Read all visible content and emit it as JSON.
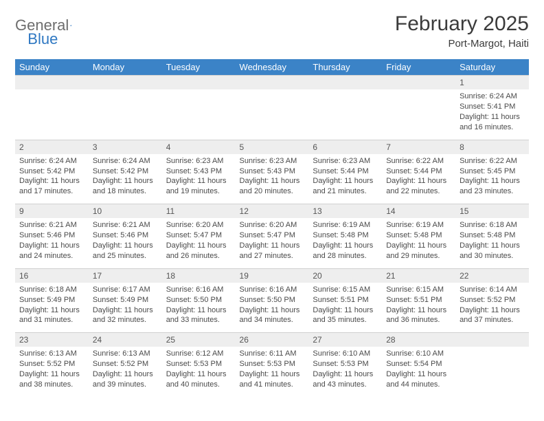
{
  "brand": {
    "part1": "General",
    "part2": "Blue"
  },
  "title": {
    "month": "February 2025",
    "location": "Port-Margot, Haiti"
  },
  "colors": {
    "header_bg": "#3b83c7",
    "header_text": "#ffffff",
    "daynum_bg": "#eeeeee",
    "border": "#d0d0d0",
    "text": "#4a4a4a",
    "brand_gray": "#6d6d6d",
    "brand_blue": "#2f78c2"
  },
  "weekdays": [
    "Sunday",
    "Monday",
    "Tuesday",
    "Wednesday",
    "Thursday",
    "Friday",
    "Saturday"
  ],
  "weeks": [
    [
      null,
      null,
      null,
      null,
      null,
      null,
      {
        "n": "1",
        "sr": "Sunrise: 6:24 AM",
        "ss": "Sunset: 5:41 PM",
        "dl": "Daylight: 11 hours and 16 minutes."
      }
    ],
    [
      {
        "n": "2",
        "sr": "Sunrise: 6:24 AM",
        "ss": "Sunset: 5:42 PM",
        "dl": "Daylight: 11 hours and 17 minutes."
      },
      {
        "n": "3",
        "sr": "Sunrise: 6:24 AM",
        "ss": "Sunset: 5:42 PM",
        "dl": "Daylight: 11 hours and 18 minutes."
      },
      {
        "n": "4",
        "sr": "Sunrise: 6:23 AM",
        "ss": "Sunset: 5:43 PM",
        "dl": "Daylight: 11 hours and 19 minutes."
      },
      {
        "n": "5",
        "sr": "Sunrise: 6:23 AM",
        "ss": "Sunset: 5:43 PM",
        "dl": "Daylight: 11 hours and 20 minutes."
      },
      {
        "n": "6",
        "sr": "Sunrise: 6:23 AM",
        "ss": "Sunset: 5:44 PM",
        "dl": "Daylight: 11 hours and 21 minutes."
      },
      {
        "n": "7",
        "sr": "Sunrise: 6:22 AM",
        "ss": "Sunset: 5:44 PM",
        "dl": "Daylight: 11 hours and 22 minutes."
      },
      {
        "n": "8",
        "sr": "Sunrise: 6:22 AM",
        "ss": "Sunset: 5:45 PM",
        "dl": "Daylight: 11 hours and 23 minutes."
      }
    ],
    [
      {
        "n": "9",
        "sr": "Sunrise: 6:21 AM",
        "ss": "Sunset: 5:46 PM",
        "dl": "Daylight: 11 hours and 24 minutes."
      },
      {
        "n": "10",
        "sr": "Sunrise: 6:21 AM",
        "ss": "Sunset: 5:46 PM",
        "dl": "Daylight: 11 hours and 25 minutes."
      },
      {
        "n": "11",
        "sr": "Sunrise: 6:20 AM",
        "ss": "Sunset: 5:47 PM",
        "dl": "Daylight: 11 hours and 26 minutes."
      },
      {
        "n": "12",
        "sr": "Sunrise: 6:20 AM",
        "ss": "Sunset: 5:47 PM",
        "dl": "Daylight: 11 hours and 27 minutes."
      },
      {
        "n": "13",
        "sr": "Sunrise: 6:19 AM",
        "ss": "Sunset: 5:48 PM",
        "dl": "Daylight: 11 hours and 28 minutes."
      },
      {
        "n": "14",
        "sr": "Sunrise: 6:19 AM",
        "ss": "Sunset: 5:48 PM",
        "dl": "Daylight: 11 hours and 29 minutes."
      },
      {
        "n": "15",
        "sr": "Sunrise: 6:18 AM",
        "ss": "Sunset: 5:48 PM",
        "dl": "Daylight: 11 hours and 30 minutes."
      }
    ],
    [
      {
        "n": "16",
        "sr": "Sunrise: 6:18 AM",
        "ss": "Sunset: 5:49 PM",
        "dl": "Daylight: 11 hours and 31 minutes."
      },
      {
        "n": "17",
        "sr": "Sunrise: 6:17 AM",
        "ss": "Sunset: 5:49 PM",
        "dl": "Daylight: 11 hours and 32 minutes."
      },
      {
        "n": "18",
        "sr": "Sunrise: 6:16 AM",
        "ss": "Sunset: 5:50 PM",
        "dl": "Daylight: 11 hours and 33 minutes."
      },
      {
        "n": "19",
        "sr": "Sunrise: 6:16 AM",
        "ss": "Sunset: 5:50 PM",
        "dl": "Daylight: 11 hours and 34 minutes."
      },
      {
        "n": "20",
        "sr": "Sunrise: 6:15 AM",
        "ss": "Sunset: 5:51 PM",
        "dl": "Daylight: 11 hours and 35 minutes."
      },
      {
        "n": "21",
        "sr": "Sunrise: 6:15 AM",
        "ss": "Sunset: 5:51 PM",
        "dl": "Daylight: 11 hours and 36 minutes."
      },
      {
        "n": "22",
        "sr": "Sunrise: 6:14 AM",
        "ss": "Sunset: 5:52 PM",
        "dl": "Daylight: 11 hours and 37 minutes."
      }
    ],
    [
      {
        "n": "23",
        "sr": "Sunrise: 6:13 AM",
        "ss": "Sunset: 5:52 PM",
        "dl": "Daylight: 11 hours and 38 minutes."
      },
      {
        "n": "24",
        "sr": "Sunrise: 6:13 AM",
        "ss": "Sunset: 5:52 PM",
        "dl": "Daylight: 11 hours and 39 minutes."
      },
      {
        "n": "25",
        "sr": "Sunrise: 6:12 AM",
        "ss": "Sunset: 5:53 PM",
        "dl": "Daylight: 11 hours and 40 minutes."
      },
      {
        "n": "26",
        "sr": "Sunrise: 6:11 AM",
        "ss": "Sunset: 5:53 PM",
        "dl": "Daylight: 11 hours and 41 minutes."
      },
      {
        "n": "27",
        "sr": "Sunrise: 6:10 AM",
        "ss": "Sunset: 5:53 PM",
        "dl": "Daylight: 11 hours and 43 minutes."
      },
      {
        "n": "28",
        "sr": "Sunrise: 6:10 AM",
        "ss": "Sunset: 5:54 PM",
        "dl": "Daylight: 11 hours and 44 minutes."
      },
      null
    ]
  ]
}
